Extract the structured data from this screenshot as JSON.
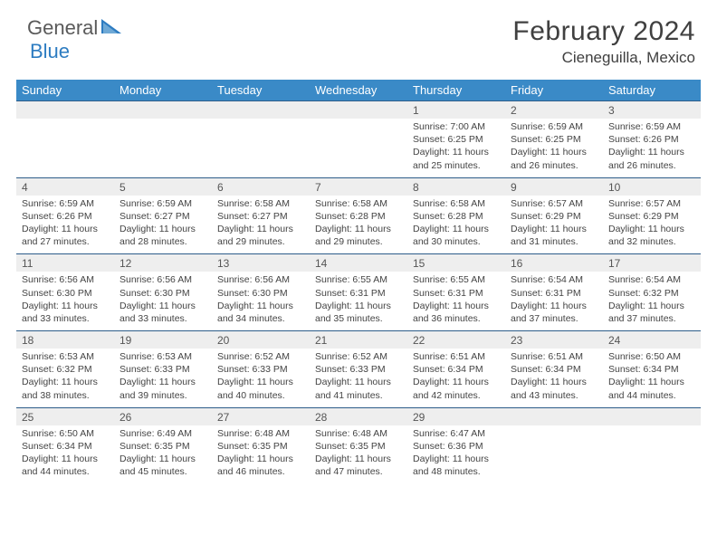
{
  "brand": {
    "part1": "General",
    "part2": "Blue"
  },
  "title": "February 2024",
  "location": "Cieneguilla, Mexico",
  "colors": {
    "header_bg": "#3a8ac7",
    "header_text": "#ffffff",
    "daynum_bg": "#eeeeee",
    "border_top": "#2d5d8a",
    "body_text": "#444444",
    "title_text": "#404040",
    "brand_gray": "#5a5a5a",
    "brand_blue": "#2d7cc1"
  },
  "weekdays": [
    "Sunday",
    "Monday",
    "Tuesday",
    "Wednesday",
    "Thursday",
    "Friday",
    "Saturday"
  ],
  "weeks": [
    [
      null,
      null,
      null,
      null,
      {
        "n": "1",
        "sunrise": "7:00 AM",
        "sunset": "6:25 PM",
        "daylight": "11 hours and 25 minutes."
      },
      {
        "n": "2",
        "sunrise": "6:59 AM",
        "sunset": "6:25 PM",
        "daylight": "11 hours and 26 minutes."
      },
      {
        "n": "3",
        "sunrise": "6:59 AM",
        "sunset": "6:26 PM",
        "daylight": "11 hours and 26 minutes."
      }
    ],
    [
      {
        "n": "4",
        "sunrise": "6:59 AM",
        "sunset": "6:26 PM",
        "daylight": "11 hours and 27 minutes."
      },
      {
        "n": "5",
        "sunrise": "6:59 AM",
        "sunset": "6:27 PM",
        "daylight": "11 hours and 28 minutes."
      },
      {
        "n": "6",
        "sunrise": "6:58 AM",
        "sunset": "6:27 PM",
        "daylight": "11 hours and 29 minutes."
      },
      {
        "n": "7",
        "sunrise": "6:58 AM",
        "sunset": "6:28 PM",
        "daylight": "11 hours and 29 minutes."
      },
      {
        "n": "8",
        "sunrise": "6:58 AM",
        "sunset": "6:28 PM",
        "daylight": "11 hours and 30 minutes."
      },
      {
        "n": "9",
        "sunrise": "6:57 AM",
        "sunset": "6:29 PM",
        "daylight": "11 hours and 31 minutes."
      },
      {
        "n": "10",
        "sunrise": "6:57 AM",
        "sunset": "6:29 PM",
        "daylight": "11 hours and 32 minutes."
      }
    ],
    [
      {
        "n": "11",
        "sunrise": "6:56 AM",
        "sunset": "6:30 PM",
        "daylight": "11 hours and 33 minutes."
      },
      {
        "n": "12",
        "sunrise": "6:56 AM",
        "sunset": "6:30 PM",
        "daylight": "11 hours and 33 minutes."
      },
      {
        "n": "13",
        "sunrise": "6:56 AM",
        "sunset": "6:30 PM",
        "daylight": "11 hours and 34 minutes."
      },
      {
        "n": "14",
        "sunrise": "6:55 AM",
        "sunset": "6:31 PM",
        "daylight": "11 hours and 35 minutes."
      },
      {
        "n": "15",
        "sunrise": "6:55 AM",
        "sunset": "6:31 PM",
        "daylight": "11 hours and 36 minutes."
      },
      {
        "n": "16",
        "sunrise": "6:54 AM",
        "sunset": "6:31 PM",
        "daylight": "11 hours and 37 minutes."
      },
      {
        "n": "17",
        "sunrise": "6:54 AM",
        "sunset": "6:32 PM",
        "daylight": "11 hours and 37 minutes."
      }
    ],
    [
      {
        "n": "18",
        "sunrise": "6:53 AM",
        "sunset": "6:32 PM",
        "daylight": "11 hours and 38 minutes."
      },
      {
        "n": "19",
        "sunrise": "6:53 AM",
        "sunset": "6:33 PM",
        "daylight": "11 hours and 39 minutes."
      },
      {
        "n": "20",
        "sunrise": "6:52 AM",
        "sunset": "6:33 PM",
        "daylight": "11 hours and 40 minutes."
      },
      {
        "n": "21",
        "sunrise": "6:52 AM",
        "sunset": "6:33 PM",
        "daylight": "11 hours and 41 minutes."
      },
      {
        "n": "22",
        "sunrise": "6:51 AM",
        "sunset": "6:34 PM",
        "daylight": "11 hours and 42 minutes."
      },
      {
        "n": "23",
        "sunrise": "6:51 AM",
        "sunset": "6:34 PM",
        "daylight": "11 hours and 43 minutes."
      },
      {
        "n": "24",
        "sunrise": "6:50 AM",
        "sunset": "6:34 PM",
        "daylight": "11 hours and 44 minutes."
      }
    ],
    [
      {
        "n": "25",
        "sunrise": "6:50 AM",
        "sunset": "6:34 PM",
        "daylight": "11 hours and 44 minutes."
      },
      {
        "n": "26",
        "sunrise": "6:49 AM",
        "sunset": "6:35 PM",
        "daylight": "11 hours and 45 minutes."
      },
      {
        "n": "27",
        "sunrise": "6:48 AM",
        "sunset": "6:35 PM",
        "daylight": "11 hours and 46 minutes."
      },
      {
        "n": "28",
        "sunrise": "6:48 AM",
        "sunset": "6:35 PM",
        "daylight": "11 hours and 47 minutes."
      },
      {
        "n": "29",
        "sunrise": "6:47 AM",
        "sunset": "6:36 PM",
        "daylight": "11 hours and 48 minutes."
      },
      null,
      null
    ]
  ],
  "labels": {
    "sunrise": "Sunrise: ",
    "sunset": "Sunset: ",
    "daylight": "Daylight: "
  }
}
